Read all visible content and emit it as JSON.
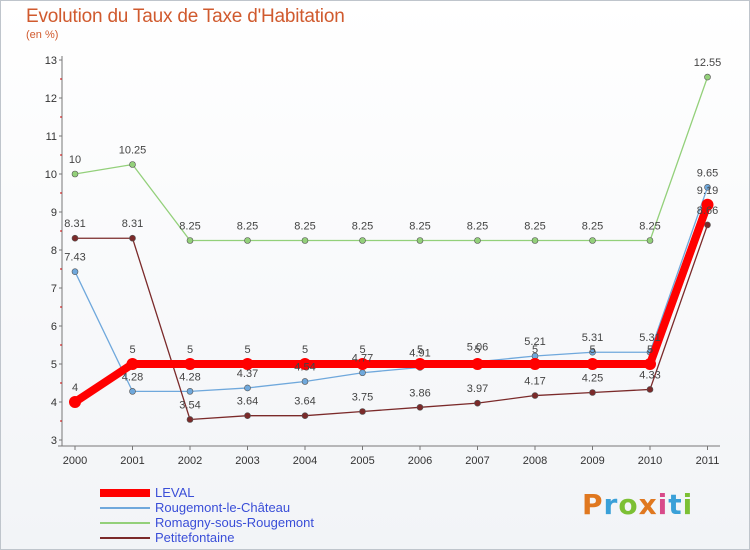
{
  "header": {
    "title": "Evolution du Taux de Taxe d'Habitation",
    "subtitle": "(en %)"
  },
  "logo": {
    "text": "Proxiti",
    "colors": [
      "#e07820",
      "#3aa0d8",
      "#7cc034",
      "#e07820",
      "#d84a8a",
      "#3aa0d8",
      "#7cc034"
    ]
  },
  "chart_data": {
    "type": "line",
    "title": "Evolution du Taux de Taxe d'Habitation",
    "ylabel": "(en %)",
    "xlabel": "",
    "x": [
      "2000",
      "2001",
      "2002",
      "2003",
      "2004",
      "2005",
      "2006",
      "2007",
      "2008",
      "2009",
      "2010",
      "2011"
    ],
    "ylim": [
      3,
      13
    ],
    "yticks": [
      3,
      4,
      5,
      6,
      7,
      8,
      9,
      10,
      11,
      12,
      13
    ],
    "grid": false,
    "legend_position": "bottom-left",
    "series": [
      {
        "name": "LEVAL",
        "color": "#ff0000",
        "values": [
          4,
          5,
          5,
          5,
          5,
          5,
          5,
          5,
          5,
          5,
          5,
          9.19
        ],
        "labels": [
          "4",
          "5",
          "5",
          "5",
          "5",
          "5",
          "5",
          "5",
          "5",
          "5",
          "5",
          "9.19"
        ]
      },
      {
        "name": "Rougemont-le-Château",
        "color": "#6fa8dc",
        "values": [
          7.43,
          4.28,
          4.28,
          4.37,
          4.54,
          4.77,
          4.91,
          5.06,
          5.21,
          5.31,
          5.31,
          9.65
        ],
        "labels": [
          "7.43",
          "4.28",
          "4.28",
          "4.37",
          "4.54",
          "4.77",
          "4.91",
          "5.06",
          "5.21",
          "5.31",
          "5.31",
          "9.65"
        ]
      },
      {
        "name": "Romagny-sous-Rougemont",
        "color": "#93d07a",
        "values": [
          10,
          10.25,
          8.25,
          8.25,
          8.25,
          8.25,
          8.25,
          8.25,
          8.25,
          8.25,
          8.25,
          12.55
        ],
        "labels": [
          "10",
          "10.25",
          "8.25",
          "8.25",
          "8.25",
          "8.25",
          "8.25",
          "8.25",
          "8.25",
          "8.25",
          "8.25",
          "12.55"
        ]
      },
      {
        "name": "Petitefontaine",
        "color": "#7b2a2a",
        "values": [
          8.31,
          8.31,
          3.54,
          3.64,
          3.64,
          3.75,
          3.86,
          3.97,
          4.17,
          4.25,
          4.33,
          8.66
        ],
        "labels": [
          "8.31",
          "8.31",
          "3.54",
          "3.64",
          "3.64",
          "3.75",
          "3.86",
          "3.97",
          "4.17",
          "4.25",
          "4.33",
          "8.66"
        ]
      }
    ]
  }
}
